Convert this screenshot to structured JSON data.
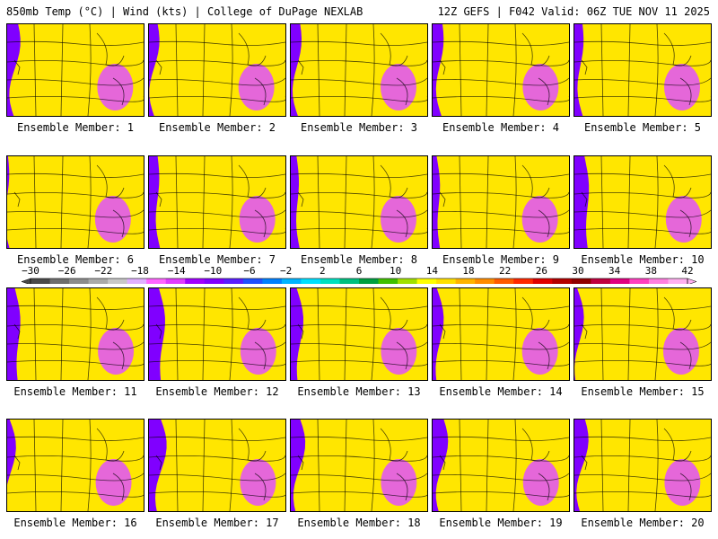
{
  "header": {
    "left": "850mb Temp (°C) | Wind (kts) | College of DuPage NEXLAB",
    "right": "12Z GEFS | F042 Valid: 06Z TUE NOV 11 2025"
  },
  "members": [
    {
      "label": "Ensemble Member: 1",
      "warmth": 0.55
    },
    {
      "label": "Ensemble Member: 2",
      "warmth": 0.45
    },
    {
      "label": "Ensemble Member: 3",
      "warmth": 0.5
    },
    {
      "label": "Ensemble Member: 4",
      "warmth": 0.55
    },
    {
      "label": "Ensemble Member: 5",
      "warmth": 0.5
    },
    {
      "label": "Ensemble Member: 6",
      "warmth": 0.2
    },
    {
      "label": "Ensemble Member: 7",
      "warmth": 0.6
    },
    {
      "label": "Ensemble Member: 8",
      "warmth": 0.5
    },
    {
      "label": "Ensemble Member: 9",
      "warmth": 0.45
    },
    {
      "label": "Ensemble Member: 10",
      "warmth": 0.75
    },
    {
      "label": "Ensemble Member: 11",
      "warmth": 0.65
    },
    {
      "label": "Ensemble Member: 12",
      "warmth": 0.75
    },
    {
      "label": "Ensemble Member: 13",
      "warmth": 0.55
    },
    {
      "label": "Ensemble Member: 14",
      "warmth": 0.45
    },
    {
      "label": "Ensemble Member: 15",
      "warmth": 0.35
    },
    {
      "label": "Ensemble Member: 16",
      "warmth": 0.3
    },
    {
      "label": "Ensemble Member: 17",
      "warmth": 0.7
    },
    {
      "label": "Ensemble Member: 18",
      "warmth": 0.55
    },
    {
      "label": "Ensemble Member: 19",
      "warmth": 0.6
    },
    {
      "label": "Ensemble Member: 20",
      "warmth": 0.55
    }
  ],
  "colorbar": {
    "ticks": [
      "−30",
      "−26",
      "−22",
      "−18",
      "−14",
      "−10",
      "−6",
      "−2",
      "2",
      "6",
      "10",
      "14",
      "18",
      "22",
      "26",
      "30",
      "34",
      "38",
      "42"
    ],
    "colors": [
      "#4a4a4a",
      "#6e6e6e",
      "#8c8c8c",
      "#aaaaaa",
      "#c8c8c8",
      "#e0b0ff",
      "#ff66ff",
      "#e03cff",
      "#a000ff",
      "#8000ff",
      "#5a1eff",
      "#2050ff",
      "#0080ff",
      "#00b4ff",
      "#00e0ff",
      "#00e0c0",
      "#00c080",
      "#00a040",
      "#40c000",
      "#a0e000",
      "#ffff00",
      "#ffe000",
      "#ffb400",
      "#ff8c00",
      "#ff5a00",
      "#ff2800",
      "#e00000",
      "#b40000",
      "#900000",
      "#c00040",
      "#e00080",
      "#ff40c0",
      "#ff80e0",
      "#ffb0f0"
    ]
  }
}
